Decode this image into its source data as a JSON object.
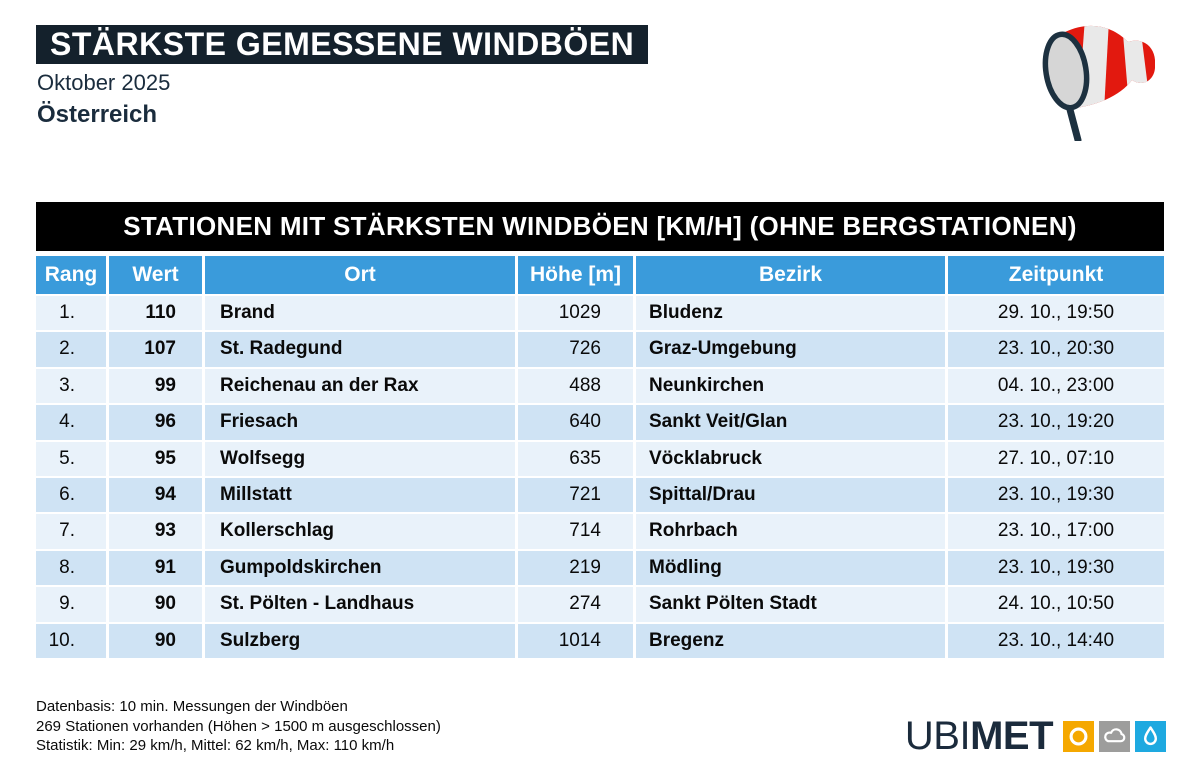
{
  "header": {
    "title": "STÄRKSTE GEMESSENE WINDBÖEN",
    "period": "Oktober 2025",
    "region": "Österreich",
    "icon": "windsock-icon"
  },
  "chart_data": {
    "type": "table",
    "title": "STATIONEN MIT STÄRKSTEN WINDBÖEN [KM/H] (OHNE BERGSTATIONEN)",
    "columns": [
      "Rang",
      "Wert",
      "Ort",
      "Höhe [m]",
      "Bezirk",
      "Zeitpunkt"
    ],
    "rows": [
      [
        "1.",
        "110",
        "Brand",
        "1029",
        "Bludenz",
        "29. 10., 19:50"
      ],
      [
        "2.",
        "107",
        "St. Radegund",
        "726",
        "Graz-Umgebung",
        "23. 10., 20:30"
      ],
      [
        "3.",
        "99",
        "Reichenau an der Rax",
        "488",
        "Neunkirchen",
        "04. 10., 23:00"
      ],
      [
        "4.",
        "96",
        "Friesach",
        "640",
        "Sankt Veit/Glan",
        "23. 10., 19:20"
      ],
      [
        "5.",
        "95",
        "Wolfsegg",
        "635",
        "Vöcklabruck",
        "27. 10., 07:10"
      ],
      [
        "6.",
        "94",
        "Millstatt",
        "721",
        "Spittal/Drau",
        "23. 10., 19:30"
      ],
      [
        "7.",
        "93",
        "Kollerschlag",
        "714",
        "Rohrbach",
        "23. 10., 17:00"
      ],
      [
        "8.",
        "91",
        "Gumpoldskirchen",
        "219",
        "Mödling",
        "23. 10., 19:30"
      ],
      [
        "9.",
        "90",
        "St. Pölten - Landhaus",
        "274",
        "Sankt Pölten Stadt",
        "24. 10., 10:50"
      ],
      [
        "10.",
        "90",
        "Sulzberg",
        "1014",
        "Bregenz",
        "23. 10., 14:40"
      ]
    ]
  },
  "footer": {
    "lines": [
      "Datenbasis: 10 min. Messungen der Windböen",
      "269 Stationen vorhanden (Höhen > 1500 m ausgeschlossen)",
      "Statistik: Min: 29 km/h, Mittel: 62 km/h, Max: 110 km/h"
    ],
    "brand": {
      "name_light": "UBI",
      "name_bold": "MET",
      "icons": [
        "sun-icon",
        "cloud-icon",
        "droplet-icon"
      ]
    }
  },
  "colors": {
    "title_bar_bg": "#14212c",
    "caption_bar_bg": "#000000",
    "header_blue": "#3a9bdb",
    "row_light": "#e9f2fa",
    "row_dark": "#cfe3f4",
    "navy_text": "#1a2c3d",
    "windsock_red": "#e2190f",
    "windsock_white": "#e9e9e9",
    "logo_navy": "#1b2b3c",
    "logo_yellow": "#f5a800",
    "logo_gray": "#9d9d9c",
    "logo_blue": "#1ea9e0"
  }
}
